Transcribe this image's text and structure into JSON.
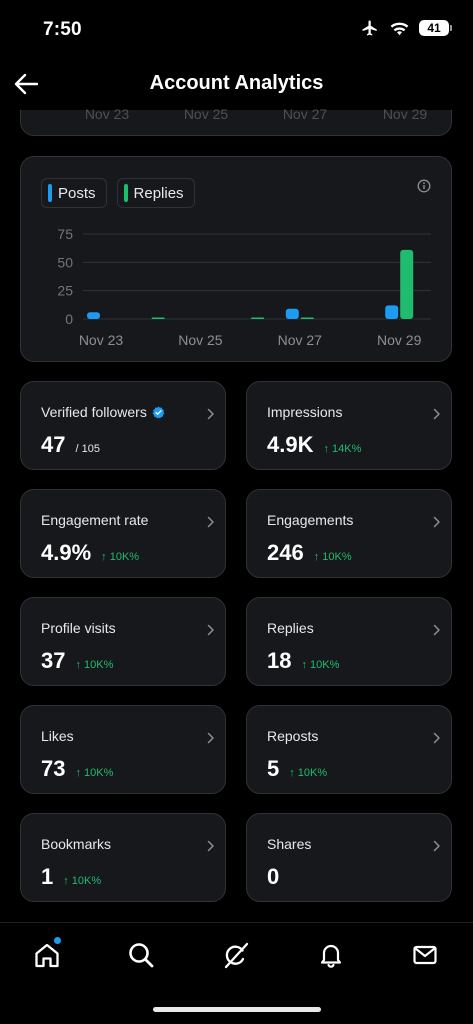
{
  "status_bar": {
    "time": "7:50",
    "battery": "41",
    "icons": [
      "airplane-icon",
      "wifi-icon",
      "battery-icon"
    ]
  },
  "header": {
    "title": "Account Analytics",
    "back_icon": "back-arrow-icon"
  },
  "top_chart_axis": {
    "labels": [
      "Nov 23",
      "Nov 25",
      "Nov 27",
      "Nov 29"
    ]
  },
  "chart_data": {
    "type": "bar",
    "categories": [
      "Nov 23",
      "Nov 24",
      "Nov 25",
      "Nov 26",
      "Nov 27",
      "Nov 28",
      "Nov 29"
    ],
    "tick_labels": [
      "Nov 23",
      "Nov 25",
      "Nov 27",
      "Nov 29"
    ],
    "series": [
      {
        "name": "Posts",
        "color": "#1d9bf0",
        "values": [
          6,
          0,
          0,
          0,
          9,
          0,
          12
        ]
      },
      {
        "name": "Replies",
        "color": "#1fbc6e",
        "values": [
          0,
          1,
          0,
          1,
          1,
          0,
          61
        ]
      }
    ],
    "yticks": [
      "75",
      "50",
      "25",
      "0"
    ],
    "ylim": [
      0,
      75
    ],
    "grid": true,
    "legend_position": "top-left"
  },
  "metrics": [
    {
      "label": "Verified followers",
      "value": "47",
      "sub": "/ 105",
      "change": "",
      "verified": true
    },
    {
      "label": "Impressions",
      "value": "4.9K",
      "sub": "",
      "change": "↑ 14K%"
    },
    {
      "label": "Engagement rate",
      "value": "4.9%",
      "sub": "",
      "change": "↑ 10K%"
    },
    {
      "label": "Engagements",
      "value": "246",
      "sub": "",
      "change": "↑ 10K%"
    },
    {
      "label": "Profile visits",
      "value": "37",
      "sub": "",
      "change": "↑ 10K%"
    },
    {
      "label": "Replies",
      "value": "18",
      "sub": "",
      "change": "↑ 10K%"
    },
    {
      "label": "Likes",
      "value": "73",
      "sub": "",
      "change": "↑ 10K%"
    },
    {
      "label": "Reposts",
      "value": "5",
      "sub": "",
      "change": "↑ 10K%"
    },
    {
      "label": "Bookmarks",
      "value": "1",
      "sub": "",
      "change": "↑ 10K%"
    },
    {
      "label": "Shares",
      "value": "0",
      "sub": "",
      "change": ""
    }
  ],
  "bottom_nav": {
    "items": [
      "home-icon",
      "search-icon",
      "grok-icon",
      "notifications-icon",
      "messages-icon"
    ],
    "home_has_badge": true
  },
  "colors": {
    "background": "#000000",
    "card": "#16181c",
    "border": "#2f3336",
    "accent_blue": "#1d9bf0",
    "accent_green": "#1fbc6e"
  }
}
